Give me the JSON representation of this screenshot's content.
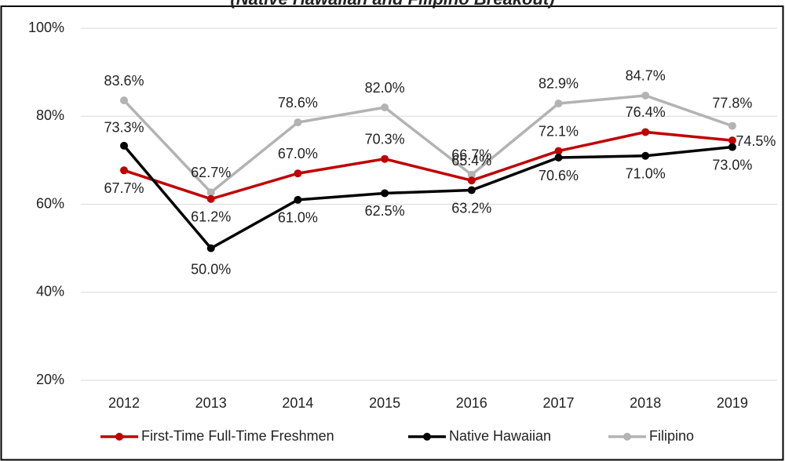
{
  "chart_data": {
    "type": "line",
    "subtitle": "(Native Hawaiian and Filipino Breakout)",
    "categories": [
      "2012",
      "2013",
      "2014",
      "2015",
      "2016",
      "2017",
      "2018",
      "2019"
    ],
    "series": [
      {
        "name": "First-Time Full-Time Freshmen",
        "color": "#c00000",
        "values": [
          67.7,
          61.2,
          67.0,
          70.3,
          65.4,
          72.1,
          76.4,
          74.5
        ],
        "value_labels": [
          "67.7%",
          "61.2%",
          "67.0%",
          "70.3%",
          "65.4%",
          "72.1%",
          "76.4%",
          "74.5%"
        ]
      },
      {
        "name": "Native Hawaiian",
        "color": "#000000",
        "values": [
          73.3,
          50.0,
          61.0,
          62.5,
          63.2,
          70.6,
          71.0,
          73.0
        ],
        "value_labels": [
          "73.3%",
          "50.0%",
          "61.0%",
          "62.5%",
          "63.2%",
          "70.6%",
          "71.0%",
          "73.0%"
        ]
      },
      {
        "name": "Filipino",
        "color": "#b3b3b3",
        "values": [
          83.6,
          62.7,
          78.6,
          82.0,
          66.7,
          82.9,
          84.7,
          77.8
        ],
        "value_labels": [
          "83.6%",
          "62.7%",
          "78.6%",
          "82.0%",
          "66.7%",
          "82.9%",
          "84.7%",
          "77.8%"
        ]
      }
    ],
    "ylim": [
      20,
      100
    ],
    "yticks": [
      {
        "value": 20,
        "label": "20%"
      },
      {
        "value": 40,
        "label": "40%"
      },
      {
        "value": 60,
        "label": "60%"
      },
      {
        "value": 80,
        "label": "80%"
      },
      {
        "value": 100,
        "label": "100%"
      }
    ],
    "grid": true,
    "legend": "bottom"
  }
}
